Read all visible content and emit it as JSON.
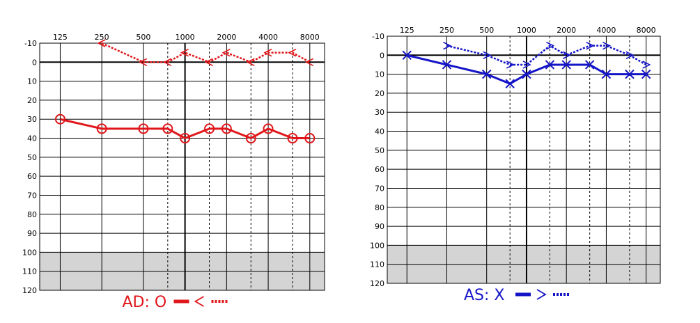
{
  "chart_data": [
    {
      "type": "line",
      "title": "",
      "ear": "right",
      "color": "#e0161a",
      "x_ticks": [
        125,
        250,
        500,
        1000,
        2000,
        4000,
        8000
      ],
      "x_tick_labels": [
        "125",
        "250",
        "500",
        "1000",
        "2000",
        "4000",
        "8000"
      ],
      "mid_octaves": [
        750,
        1500,
        3000,
        6000
      ],
      "ylim": [
        -10,
        120
      ],
      "y_ticks": [
        -10,
        0,
        10,
        20,
        30,
        40,
        50,
        60,
        70,
        80,
        90,
        100,
        110,
        120
      ],
      "y_tick_labels": [
        "-10",
        "0",
        "10",
        "20",
        "30",
        "40",
        "50",
        "60",
        "70",
        "80",
        "90",
        "100",
        "110",
        "120"
      ],
      "shaded_range": [
        100,
        120
      ],
      "grid": true,
      "legend_placement": "bottom-center",
      "legend": {
        "text": "AD: O",
        "air_marker": "circle",
        "bone_marker": "<"
      },
      "series": [
        {
          "kind": "air",
          "marker": "circle",
          "line": "solid",
          "points": [
            {
              "x": 125,
              "y": 30
            },
            {
              "x": 250,
              "y": 35
            },
            {
              "x": 500,
              "y": 35
            },
            {
              "x": 750,
              "y": 35
            },
            {
              "x": 1000,
              "y": 40
            },
            {
              "x": 1500,
              "y": 35
            },
            {
              "x": 2000,
              "y": 35
            },
            {
              "x": 3000,
              "y": 40
            },
            {
              "x": 4000,
              "y": 35
            },
            {
              "x": 6000,
              "y": 40
            },
            {
              "x": 8000,
              "y": 40
            }
          ]
        },
        {
          "kind": "bone",
          "marker": "<",
          "line": "dotted",
          "points": [
            {
              "x": 250,
              "y": -10
            },
            {
              "x": 500,
              "y": 0
            },
            {
              "x": 750,
              "y": 0
            },
            {
              "x": 1000,
              "y": -5
            },
            {
              "x": 1500,
              "y": 0
            },
            {
              "x": 2000,
              "y": -5
            },
            {
              "x": 3000,
              "y": 0
            },
            {
              "x": 4000,
              "y": -5
            },
            {
              "x": 6000,
              "y": -5
            },
            {
              "x": 8000,
              "y": 0
            }
          ]
        }
      ]
    },
    {
      "type": "line",
      "title": "",
      "ear": "left",
      "color": "#1515c8",
      "x_ticks": [
        125,
        250,
        500,
        1000,
        2000,
        4000,
        8000
      ],
      "x_tick_labels": [
        "125",
        "250",
        "500",
        "1000",
        "2000",
        "4000",
        "8000"
      ],
      "mid_octaves": [
        750,
        1500,
        3000,
        6000
      ],
      "ylim": [
        -10,
        120
      ],
      "y_ticks": [
        -10,
        0,
        10,
        20,
        30,
        40,
        50,
        60,
        70,
        80,
        90,
        100,
        110,
        120
      ],
      "y_tick_labels": [
        "-10",
        "0",
        "10",
        "20",
        "30",
        "40",
        "50",
        "60",
        "70",
        "80",
        "90",
        "100",
        "110",
        "120"
      ],
      "shaded_range": [
        100,
        120
      ],
      "grid": true,
      "legend_placement": "bottom-center",
      "legend": {
        "text": "AS: X",
        "air_marker": "x",
        "bone_marker": ">"
      },
      "series": [
        {
          "kind": "air",
          "marker": "x",
          "line": "solid",
          "points": [
            {
              "x": 125,
              "y": 0
            },
            {
              "x": 250,
              "y": 5
            },
            {
              "x": 500,
              "y": 10
            },
            {
              "x": 750,
              "y": 15
            },
            {
              "x": 1000,
              "y": 10
            },
            {
              "x": 1500,
              "y": 5
            },
            {
              "x": 2000,
              "y": 5
            },
            {
              "x": 3000,
              "y": 5
            },
            {
              "x": 4000,
              "y": 10
            },
            {
              "x": 6000,
              "y": 10
            },
            {
              "x": 8000,
              "y": 10
            }
          ]
        },
        {
          "kind": "bone",
          "marker": ">",
          "line": "dotted",
          "points": [
            {
              "x": 250,
              "y": -5
            },
            {
              "x": 500,
              "y": 0
            },
            {
              "x": 750,
              "y": 5
            },
            {
              "x": 1000,
              "y": 5
            },
            {
              "x": 1500,
              "y": -5
            },
            {
              "x": 2000,
              "y": 0
            },
            {
              "x": 3000,
              "y": -5
            },
            {
              "x": 4000,
              "y": -5
            },
            {
              "x": 6000,
              "y": 0
            },
            {
              "x": 8000,
              "y": 5
            }
          ]
        }
      ]
    }
  ]
}
